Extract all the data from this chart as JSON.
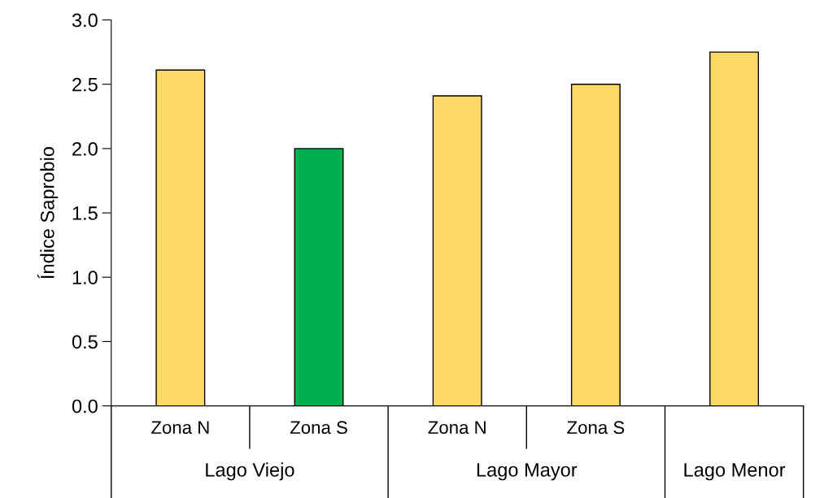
{
  "chart_data": {
    "type": "bar",
    "ylabel": "Índice Saprobio",
    "categories": [
      "Zona N",
      "Zona S",
      "Zona N",
      "Zona S",
      null
    ],
    "values": [
      2.61,
      2.0,
      2.41,
      2.5,
      2.75
    ],
    "colors": [
      "#ffd966",
      "#00b050",
      "#ffd966",
      "#ffd966",
      "#ffd966"
    ],
    "annotations": [
      "Lago Viejo",
      "Lago Mayor",
      "Lago Menor"
    ],
    "ylim": [
      0,
      3.0
    ],
    "yticks": [
      {
        "value": 0,
        "label": "0.0"
      },
      {
        "value": 0.5,
        "label": "0.5"
      },
      {
        "value": 1.0,
        "label": "1.0"
      },
      {
        "value": 1.5,
        "label": "1.5"
      },
      {
        "value": 2.0,
        "label": "2.0"
      },
      {
        "value": 2.5,
        "label": "2.5"
      },
      {
        "value": 3.0,
        "label": "3.0"
      }
    ],
    "grid": false,
    "legend": false
  }
}
